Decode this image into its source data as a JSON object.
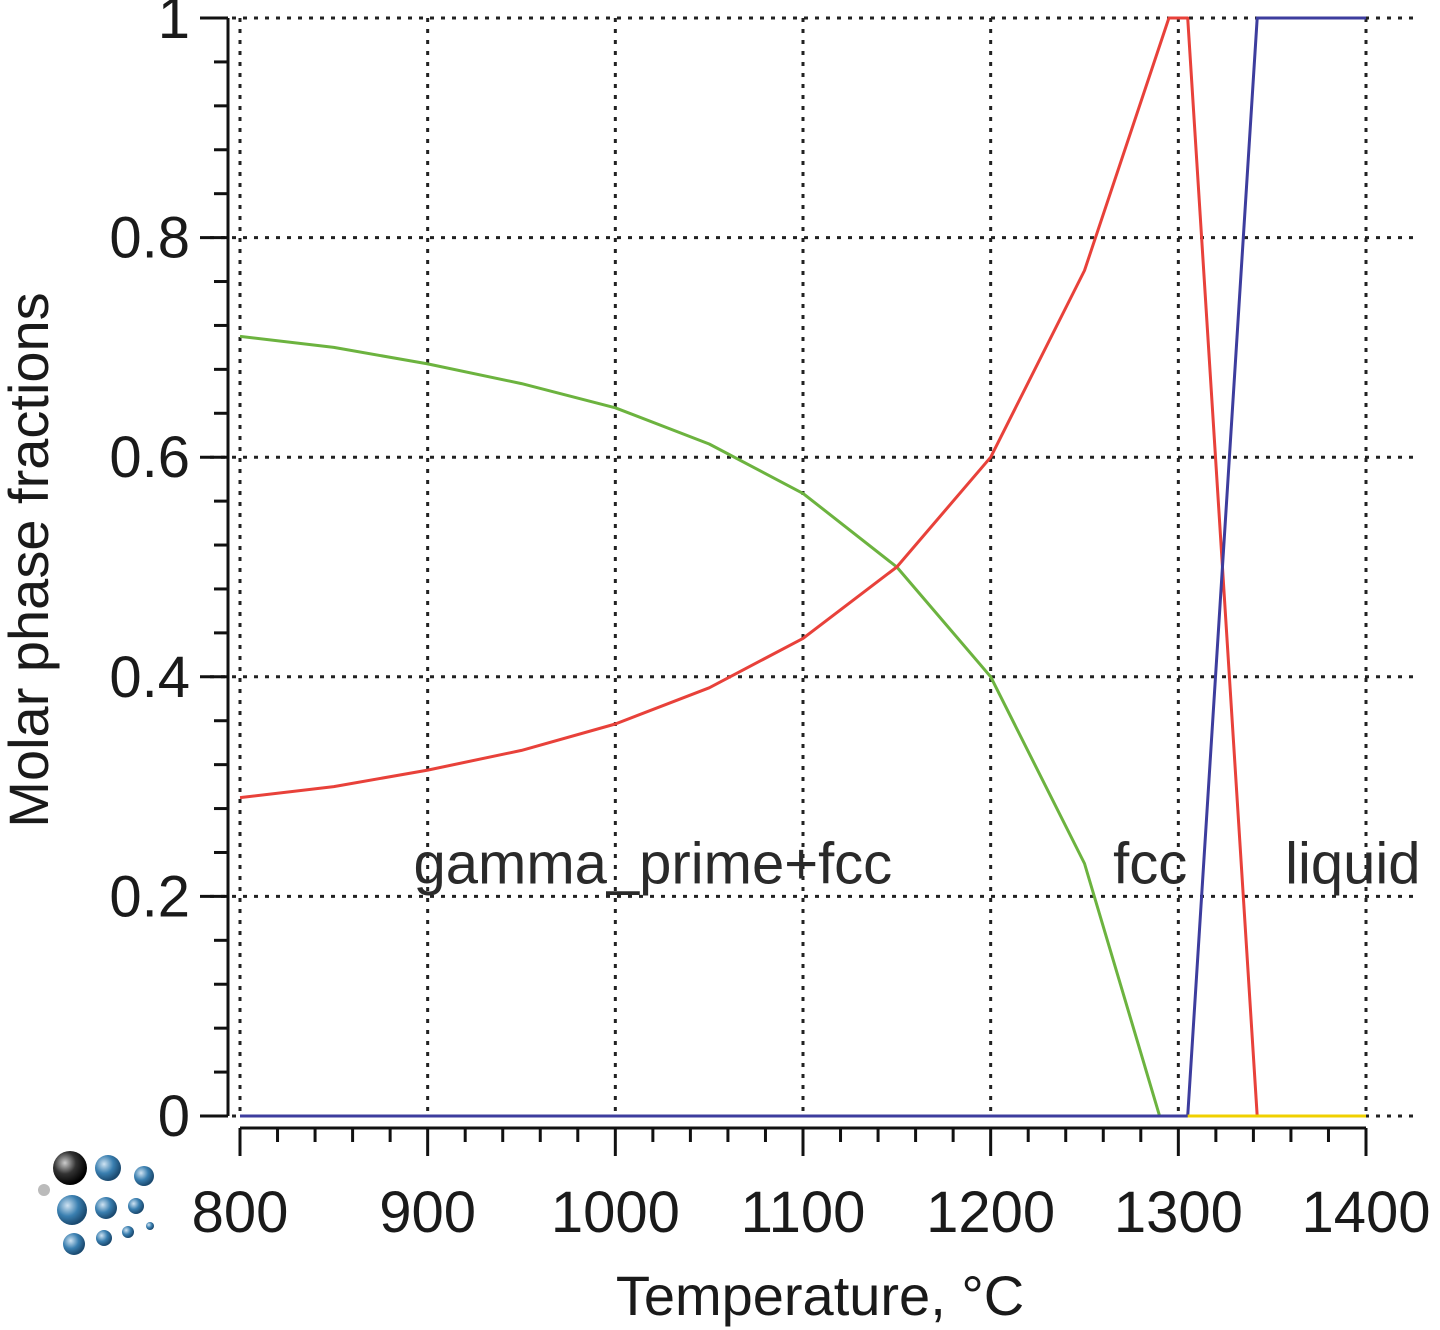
{
  "chart_data": {
    "type": "line",
    "title": "",
    "xlabel": "Temperature, °C",
    "ylabel": "Molar phase fractions",
    "xlim": [
      800,
      1400
    ],
    "ylim": [
      0,
      1
    ],
    "x_ticks": [
      800,
      900,
      1000,
      1100,
      1200,
      1300,
      1400
    ],
    "y_ticks": [
      0,
      0.2,
      0.4,
      0.6,
      0.8,
      1
    ],
    "x_tick_labels": [
      "800",
      "900",
      "1000",
      "1100",
      "1200",
      "1300",
      "1400"
    ],
    "y_tick_labels": [
      "0",
      "0.2",
      "0.4",
      "0.6",
      "0.8",
      "1"
    ],
    "grid": true,
    "series": [
      {
        "color": "#6cb33f",
        "x": [
          800,
          850,
          900,
          950,
          1000,
          1050,
          1100,
          1150,
          1200,
          1250,
          1290
        ],
        "y": [
          0.71,
          0.7,
          0.685,
          0.667,
          0.645,
          0.612,
          0.567,
          0.5,
          0.4,
          0.23,
          0.0
        ]
      },
      {
        "color": "#e8413a",
        "x": [
          800,
          850,
          900,
          950,
          1000,
          1050,
          1100,
          1150,
          1200,
          1250,
          1295,
          1305,
          1342,
          1400
        ],
        "y": [
          0.29,
          0.3,
          0.315,
          0.333,
          0.357,
          0.39,
          0.435,
          0.5,
          0.6,
          0.77,
          1.0,
          1.0,
          0.0,
          0.0
        ]
      },
      {
        "color": "#3d3d9e",
        "x": [
          800,
          1305,
          1342,
          1400
        ],
        "y": [
          0.0,
          0.0,
          1.0,
          1.0
        ]
      },
      {
        "color": "#f0d000",
        "x": [
          1305,
          1400
        ],
        "y": [
          0.0,
          0.0
        ]
      }
    ],
    "annotations": [
      {
        "text": "gamma_prime+fcc",
        "x": 1020,
        "y": 0.23
      },
      {
        "text": "fcc",
        "x": 1285,
        "y": 0.23
      },
      {
        "text": "liquid",
        "x": 1393,
        "y": 0.23
      }
    ]
  },
  "logo": {
    "icon": "atoms-cluster-logo-icon"
  }
}
